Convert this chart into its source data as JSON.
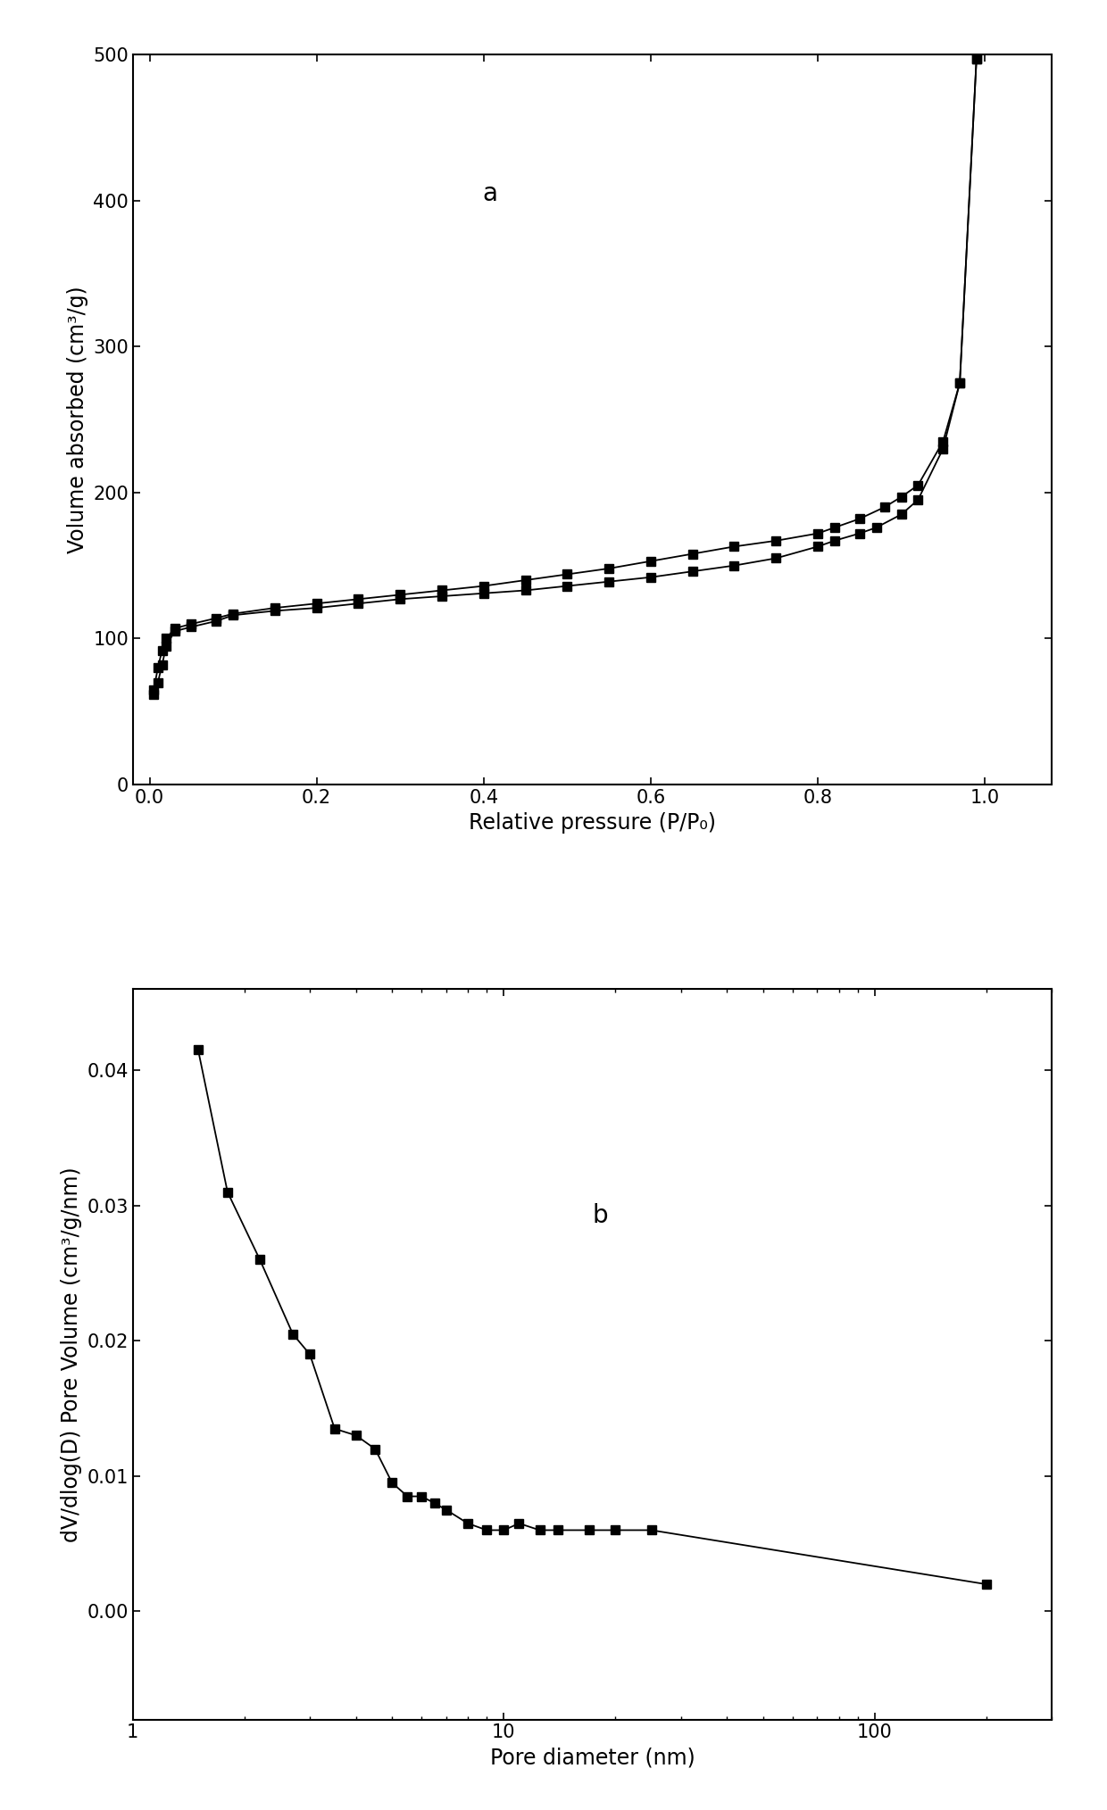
{
  "plot_a": {
    "label": "a",
    "xlabel": "Relative pressure (P/P₀)",
    "ylabel": "Volume absorbed (cm³/g)",
    "xlim": [
      -0.02,
      1.08
    ],
    "ylim": [
      0,
      500
    ],
    "yticks": [
      0,
      100,
      200,
      300,
      400,
      500
    ],
    "xticks": [
      0.0,
      0.2,
      0.4,
      0.6,
      0.8,
      1.0
    ],
    "adsorption_x": [
      0.005,
      0.01,
      0.015,
      0.02,
      0.03,
      0.05,
      0.08,
      0.1,
      0.15,
      0.2,
      0.25,
      0.3,
      0.35,
      0.4,
      0.45,
      0.5,
      0.55,
      0.6,
      0.65,
      0.7,
      0.75,
      0.8,
      0.82,
      0.85,
      0.87,
      0.9,
      0.92,
      0.95,
      0.97,
      0.99
    ],
    "adsorption_y": [
      62,
      70,
      82,
      95,
      105,
      108,
      112,
      116,
      119,
      121,
      124,
      127,
      129,
      131,
      133,
      136,
      139,
      142,
      146,
      150,
      155,
      163,
      167,
      172,
      176,
      185,
      195,
      230,
      275,
      497
    ],
    "desorption_x": [
      0.99,
      0.97,
      0.95,
      0.92,
      0.9,
      0.88,
      0.85,
      0.82,
      0.8,
      0.75,
      0.7,
      0.65,
      0.6,
      0.55,
      0.5,
      0.45,
      0.4,
      0.35,
      0.3,
      0.25,
      0.2,
      0.15,
      0.1,
      0.08,
      0.05,
      0.03,
      0.02,
      0.015,
      0.01,
      0.005
    ],
    "desorption_y": [
      497,
      275,
      235,
      205,
      197,
      190,
      182,
      176,
      172,
      167,
      163,
      158,
      153,
      148,
      144,
      140,
      136,
      133,
      130,
      127,
      124,
      121,
      117,
      114,
      110,
      107,
      100,
      92,
      80,
      65
    ]
  },
  "plot_b": {
    "label": "b",
    "xlabel": "Pore diameter (nm)",
    "ylabel": "dV/dlog(D) Pore Volume (cm³/g/nm)",
    "xlim_log": [
      1.0,
      300
    ],
    "ylim": [
      -0.008,
      0.046
    ],
    "yticks": [
      0.0,
      0.01,
      0.02,
      0.03,
      0.04
    ],
    "x": [
      1.5,
      1.8,
      2.2,
      2.7,
      3.0,
      3.5,
      4.0,
      4.5,
      5.0,
      5.5,
      6.0,
      6.5,
      7.0,
      8.0,
      9.0,
      10.0,
      11.0,
      12.5,
      14.0,
      17.0,
      20.0,
      25.0,
      200.0
    ],
    "y": [
      0.0415,
      0.031,
      0.026,
      0.0205,
      0.019,
      0.0135,
      0.013,
      0.012,
      0.0095,
      0.0085,
      0.0085,
      0.008,
      0.0075,
      0.0065,
      0.006,
      0.006,
      0.0065,
      0.006,
      0.006,
      0.006,
      0.006,
      0.006,
      0.002
    ]
  },
  "figure_bg": "#ffffff",
  "line_color": "#000000",
  "marker": "s",
  "markersize": 7,
  "linewidth": 1.3,
  "label_fontsize": 17,
  "tick_fontsize": 15,
  "annotation_fontsize": 20
}
